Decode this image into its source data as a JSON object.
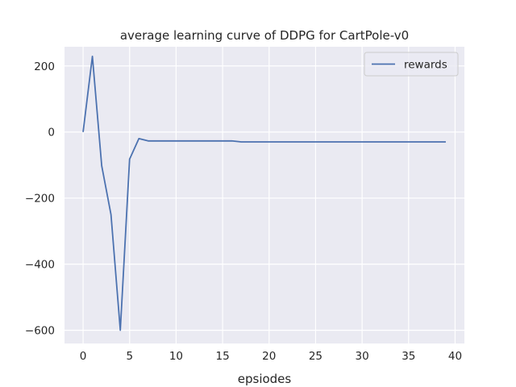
{
  "chart_data": {
    "type": "line",
    "title": "average learning curve of DDPG for CartPole-v0",
    "xlabel": "epsiodes",
    "ylabel": "",
    "xlim": [
      -2,
      41
    ],
    "ylim": [
      -640,
      258
    ],
    "xticks": [
      0,
      5,
      10,
      15,
      20,
      25,
      30,
      35,
      40
    ],
    "yticks": [
      -600,
      -400,
      -200,
      0,
      200
    ],
    "grid": true,
    "legend_position": "top-right",
    "series": [
      {
        "name": "rewards",
        "color": "#4c72b0",
        "x": [
          0,
          1,
          2,
          3,
          4,
          5,
          6,
          7,
          8,
          9,
          10,
          11,
          12,
          13,
          14,
          15,
          16,
          17,
          18,
          19,
          20,
          21,
          22,
          23,
          24,
          25,
          26,
          27,
          28,
          29,
          30,
          31,
          32,
          33,
          34,
          35,
          36,
          37,
          38,
          39
        ],
        "y": [
          0,
          229,
          -102,
          -250,
          -600,
          -82,
          -20,
          -27,
          -27,
          -27,
          -27,
          -27,
          -27,
          -27,
          -27,
          -27,
          -27,
          -30,
          -30,
          -30,
          -30,
          -30,
          -30,
          -30,
          -30,
          -30,
          -30,
          -30,
          -30,
          -30,
          -30,
          -30,
          -30,
          -30,
          -30,
          -30,
          -30,
          -30,
          -30,
          -30
        ]
      }
    ]
  },
  "colors": {
    "plot_background": "#eaeaf2",
    "grid": "#ffffff",
    "line": "#4c72b0"
  }
}
